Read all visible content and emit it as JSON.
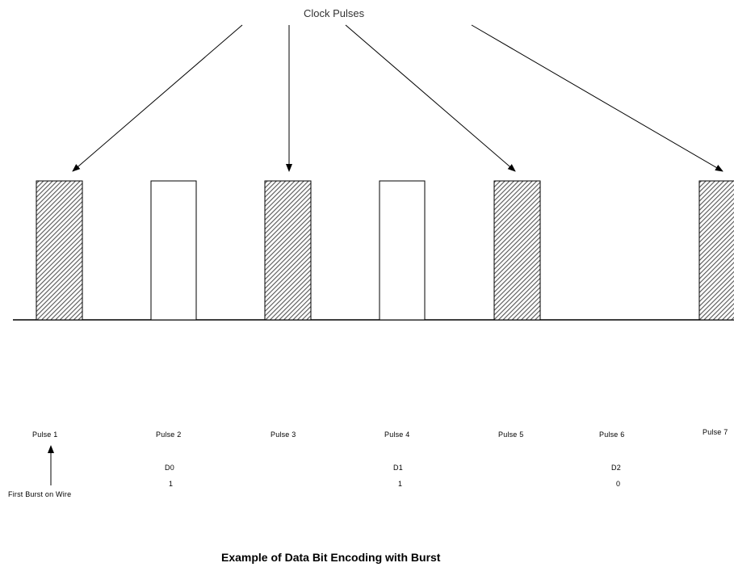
{
  "header": {
    "label": "Clock Pulses"
  },
  "pulses": [
    {
      "label": "Pulse 1",
      "filled": true
    },
    {
      "label": "Pulse 2",
      "filled": false,
      "bit_name": "D0",
      "bit_value": "1"
    },
    {
      "label": "Pulse 3",
      "filled": true
    },
    {
      "label": "Pulse 4",
      "filled": false,
      "bit_name": "D1",
      "bit_value": "1"
    },
    {
      "label": "Pulse 5",
      "filled": true
    },
    {
      "label": "Pulse 6",
      "filled": false,
      "bit_name": "D2",
      "bit_value": "0"
    },
    {
      "label": "Pulse 7",
      "filled": true
    }
  ],
  "annotation": {
    "first_burst": "First Burst on Wire"
  },
  "caption": "Example of Data Bit Encoding with Burst",
  "colors": {
    "stroke": "#000000",
    "hatch": "#555555",
    "background": "#ffffff"
  }
}
